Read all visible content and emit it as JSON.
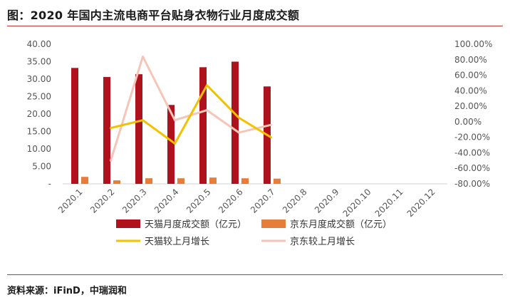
{
  "title": "图：2020 年国内主流电商平台贴身衣物行业月度成交额",
  "source": "资料来源：iFinD，中瑞润和",
  "colors": {
    "tmall_bar": "#b0121d",
    "jd_bar": "#e67e3a",
    "tmall_line": "#f2c200",
    "jd_line": "#f5c6b8",
    "rule": "#c0392b"
  },
  "chart_data": {
    "type": "bar",
    "categories": [
      "2020.1",
      "2020.2",
      "2020.3",
      "2020.4",
      "2020.5",
      "2020.6",
      "2020.7",
      "2020.8",
      "2020.9",
      "2020.10",
      "2020.11",
      "2020.12"
    ],
    "left_axis": {
      "ylim": [
        0,
        40
      ],
      "ticks": [
        "-",
        "5.00",
        "10.00",
        "15.00",
        "20.00",
        "25.00",
        "30.00",
        "35.00",
        "40.00"
      ]
    },
    "right_axis": {
      "ylim": [
        -80,
        100
      ],
      "ticks": [
        "-80.00%",
        "-60.00%",
        "-40.00%",
        "-20.00%",
        "0.00%",
        "20.00%",
        "40.00%",
        "60.00%",
        "80.00%",
        "100.00%"
      ]
    },
    "series": [
      {
        "name": "天猫月度成交额（亿元）",
        "type": "bar",
        "axis": "left",
        "values": [
          33.2,
          30.6,
          31.4,
          22.6,
          33.4,
          35.0,
          27.9,
          null,
          null,
          null,
          null,
          null
        ]
      },
      {
        "name": "京东月度成交额（亿元）",
        "type": "bar",
        "axis": "left",
        "values": [
          2.0,
          1.0,
          1.6,
          1.6,
          1.8,
          1.6,
          1.5,
          null,
          null,
          null,
          null,
          null
        ]
      },
      {
        "name": "天猫较上月增长",
        "type": "line",
        "axis": "right",
        "values": [
          null,
          -8,
          2,
          -28,
          47,
          5,
          -20,
          null,
          null,
          null,
          null,
          null
        ]
      },
      {
        "name": "京东较上月增长",
        "type": "line",
        "axis": "right",
        "values": [
          null,
          -50,
          84,
          2,
          15,
          -14,
          -4,
          null,
          null,
          null,
          null,
          null
        ]
      }
    ],
    "grid": false,
    "legend_position": "bottom"
  }
}
